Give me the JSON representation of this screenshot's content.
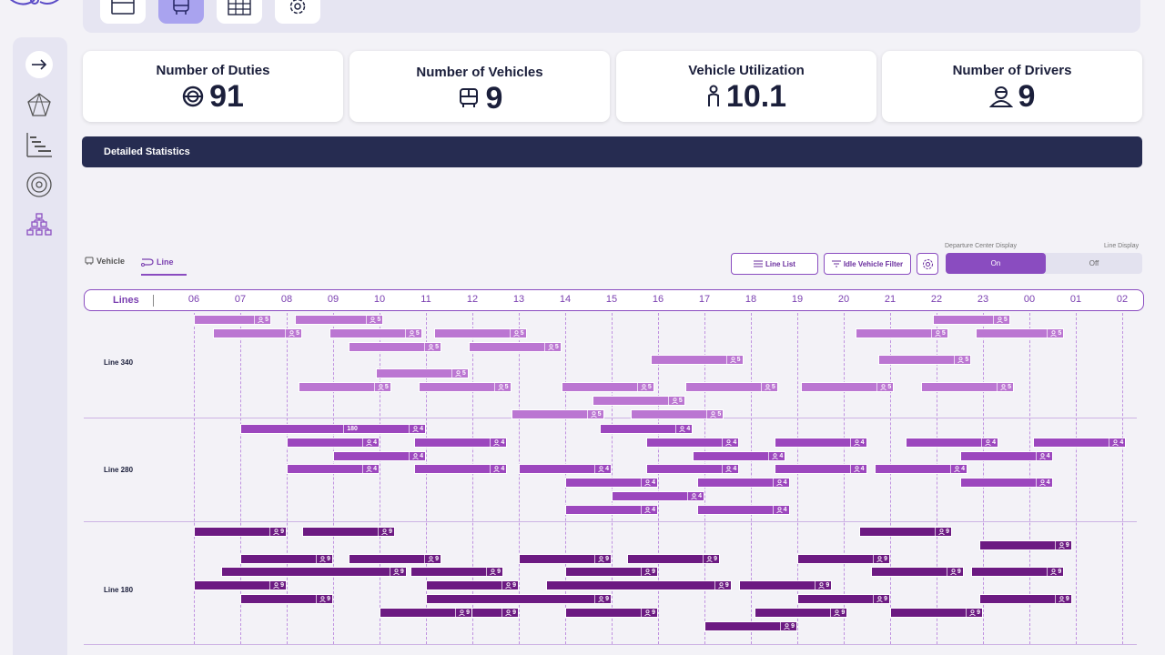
{
  "toolbar": {
    "buttons": [
      {
        "name": "window-icon",
        "active": false
      },
      {
        "name": "bus-icon",
        "active": true
      },
      {
        "name": "grid-icon",
        "active": false
      },
      {
        "name": "settings-icon",
        "active": false
      }
    ]
  },
  "sidebar": {
    "items": [
      "expand-arrow-icon",
      "network-icon",
      "gantt-icon",
      "radar-icon",
      "hierarchy-icon"
    ]
  },
  "stats": [
    {
      "title": "Number of Duties",
      "value": "91",
      "icon": "steering-wheel-icon"
    },
    {
      "title": "Number of Vehicles",
      "value": "9",
      "icon": "bus-icon"
    },
    {
      "title": "Vehicle Utilization",
      "value": "10.1",
      "icon": "person-icon"
    },
    {
      "title": "Number of Drivers",
      "value": "9",
      "icon": "driver-icon"
    }
  ],
  "detailed_title": "Detailed Statistics",
  "tabs": {
    "vehicle": "Vehicle",
    "line": "Line",
    "active": "line"
  },
  "actions": {
    "line_list": "Line List",
    "idle_filter": "Idle Vehicle Filter",
    "departure_label": "Departure Center Display",
    "line_display_label": "Line Display",
    "toggle_on": "On",
    "toggle_off": "Off",
    "toggle_state": "on"
  },
  "timeline": {
    "header_label": "Lines",
    "hours": [
      "06",
      "07",
      "08",
      "09",
      "10",
      "11",
      "12",
      "13",
      "14",
      "15",
      "16",
      "17",
      "18",
      "19",
      "20",
      "21",
      "22",
      "23",
      "00",
      "01",
      "02"
    ],
    "lines": [
      {
        "name": "Line 340",
        "color": "#bb76d2",
        "bars": [
          {
            "row": 0,
            "start": "06:00",
            "end": "07:40",
            "count": "5"
          },
          {
            "row": 0,
            "start": "08:10",
            "end": "10:05",
            "count": "5"
          },
          {
            "row": 0,
            "start": "21:55",
            "end": "23:35",
            "count": "5"
          },
          {
            "row": 1,
            "start": "06:25",
            "end": "08:20",
            "count": "5"
          },
          {
            "row": 1,
            "start": "08:55",
            "end": "10:55",
            "count": "5"
          },
          {
            "row": 1,
            "start": "11:10",
            "end": "13:10",
            "count": "5"
          },
          {
            "row": 1,
            "start": "20:15",
            "end": "22:15",
            "count": "5"
          },
          {
            "row": 1,
            "start": "22:50",
            "end": "00:45",
            "count": "5"
          },
          {
            "row": 2,
            "start": "09:20",
            "end": "11:20",
            "count": "5"
          },
          {
            "row": 2,
            "start": "11:55",
            "end": "13:55",
            "count": "5"
          },
          {
            "row": 3,
            "start": "15:50",
            "end": "17:50",
            "count": "5"
          },
          {
            "row": 3,
            "start": "20:45",
            "end": "22:45",
            "count": "5"
          },
          {
            "row": 4,
            "start": "09:55",
            "end": "11:55",
            "count": "5"
          },
          {
            "row": 5,
            "start": "08:15",
            "end": "10:15",
            "count": "5"
          },
          {
            "row": 5,
            "start": "10:50",
            "end": "12:50",
            "count": "5"
          },
          {
            "row": 5,
            "start": "13:55",
            "end": "15:55",
            "count": "5"
          },
          {
            "row": 5,
            "start": "16:35",
            "end": "18:35",
            "count": "5"
          },
          {
            "row": 5,
            "start": "19:05",
            "end": "21:05",
            "count": "5"
          },
          {
            "row": 5,
            "start": "21:40",
            "end": "23:40",
            "count": "5"
          },
          {
            "row": 6,
            "start": "14:35",
            "end": "16:35",
            "count": "5"
          },
          {
            "row": 7,
            "start": "12:50",
            "end": "14:50",
            "count": "5"
          },
          {
            "row": 7,
            "start": "15:25",
            "end": "17:25",
            "count": "5"
          }
        ]
      },
      {
        "name": "Line 280",
        "color": "#9c47be",
        "bars": [
          {
            "row": 0,
            "start": "07:00",
            "end": "11:00",
            "count": "4",
            "mid": "180"
          },
          {
            "row": 0,
            "start": "14:45",
            "end": "16:45",
            "count": "4"
          },
          {
            "row": 1,
            "start": "08:00",
            "end": "10:00",
            "count": "4"
          },
          {
            "row": 1,
            "start": "10:45",
            "end": "12:45",
            "count": "4"
          },
          {
            "row": 1,
            "start": "15:45",
            "end": "17:45",
            "count": "4"
          },
          {
            "row": 1,
            "start": "18:30",
            "end": "20:30",
            "count": "4"
          },
          {
            "row": 1,
            "start": "21:20",
            "end": "23:20",
            "count": "4"
          },
          {
            "row": 1,
            "start": "00:05",
            "end": "02:05",
            "count": "4"
          },
          {
            "row": 2,
            "start": "09:00",
            "end": "11:00",
            "count": "4"
          },
          {
            "row": 2,
            "start": "16:45",
            "end": "18:45",
            "count": "4"
          },
          {
            "row": 2,
            "start": "22:30",
            "end": "00:30",
            "count": "4"
          },
          {
            "row": 3,
            "start": "08:00",
            "end": "10:00",
            "count": "4"
          },
          {
            "row": 3,
            "start": "10:45",
            "end": "12:45",
            "count": "4"
          },
          {
            "row": 3,
            "start": "13:00",
            "end": "15:00",
            "count": "4"
          },
          {
            "row": 3,
            "start": "15:45",
            "end": "17:45",
            "count": "4"
          },
          {
            "row": 3,
            "start": "18:30",
            "end": "20:30",
            "count": "4"
          },
          {
            "row": 3,
            "start": "20:40",
            "end": "22:40",
            "count": "4"
          },
          {
            "row": 4,
            "start": "14:00",
            "end": "16:00",
            "count": "4"
          },
          {
            "row": 4,
            "start": "16:50",
            "end": "18:50",
            "count": "4"
          },
          {
            "row": 4,
            "start": "22:30",
            "end": "00:30",
            "count": "4"
          },
          {
            "row": 5,
            "start": "15:00",
            "end": "17:00",
            "count": "4"
          },
          {
            "row": 6,
            "start": "14:00",
            "end": "16:00",
            "count": "4"
          },
          {
            "row": 6,
            "start": "16:50",
            "end": "18:50",
            "count": "4"
          }
        ]
      },
      {
        "name": "Line 180",
        "color": "#6c1a82",
        "bars": [
          {
            "row": 0,
            "start": "06:00",
            "end": "08:00",
            "count": "9"
          },
          {
            "row": 0,
            "start": "08:20",
            "end": "10:20",
            "count": "9"
          },
          {
            "row": 0,
            "start": "20:20",
            "end": "22:20",
            "count": "9"
          },
          {
            "row": 1,
            "start": "22:55",
            "end": "00:55",
            "count": "9"
          },
          {
            "row": 2,
            "start": "07:00",
            "end": "09:00",
            "count": "9"
          },
          {
            "row": 2,
            "start": "09:20",
            "end": "11:20",
            "count": "9"
          },
          {
            "row": 2,
            "start": "13:00",
            "end": "15:00",
            "count": "9"
          },
          {
            "row": 2,
            "start": "15:20",
            "end": "17:20",
            "count": "9"
          },
          {
            "row": 2,
            "start": "19:00",
            "end": "21:00",
            "count": "9"
          },
          {
            "row": 3,
            "start": "06:35",
            "end": "10:35",
            "count": "9"
          },
          {
            "row": 3,
            "start": "10:40",
            "end": "12:40",
            "count": "9"
          },
          {
            "row": 3,
            "start": "14:00",
            "end": "16:00",
            "count": "9"
          },
          {
            "row": 3,
            "start": "20:35",
            "end": "22:35",
            "count": "9"
          },
          {
            "row": 3,
            "start": "22:45",
            "end": "00:45",
            "count": "9"
          },
          {
            "row": 4,
            "start": "06:00",
            "end": "08:00",
            "count": "9"
          },
          {
            "row": 4,
            "start": "11:00",
            "end": "13:00",
            "count": "9"
          },
          {
            "row": 4,
            "start": "13:35",
            "end": "17:35",
            "count": "9"
          },
          {
            "row": 4,
            "start": "17:45",
            "end": "19:45",
            "count": "9"
          },
          {
            "row": 5,
            "start": "07:00",
            "end": "09:00",
            "count": "9"
          },
          {
            "row": 5,
            "start": "11:00",
            "end": "15:00",
            "count": "9"
          },
          {
            "row": 5,
            "start": "19:00",
            "end": "21:00",
            "count": "9"
          },
          {
            "row": 5,
            "start": "22:55",
            "end": "00:55",
            "count": "9"
          },
          {
            "row": 6,
            "start": "11:00",
            "end": "13:00",
            "count": "9"
          },
          {
            "row": 6,
            "start": "14:00",
            "end": "16:00",
            "count": "9"
          },
          {
            "row": 6,
            "start": "18:05",
            "end": "20:05",
            "count": "9"
          },
          {
            "row": 6,
            "start": "10:00",
            "end": "12:00",
            "count": "9"
          },
          {
            "row": 6,
            "start": "21:00",
            "end": "23:00",
            "count": "9"
          },
          {
            "row": 7,
            "start": "17:00",
            "end": "19:00",
            "count": "9"
          }
        ]
      }
    ]
  }
}
